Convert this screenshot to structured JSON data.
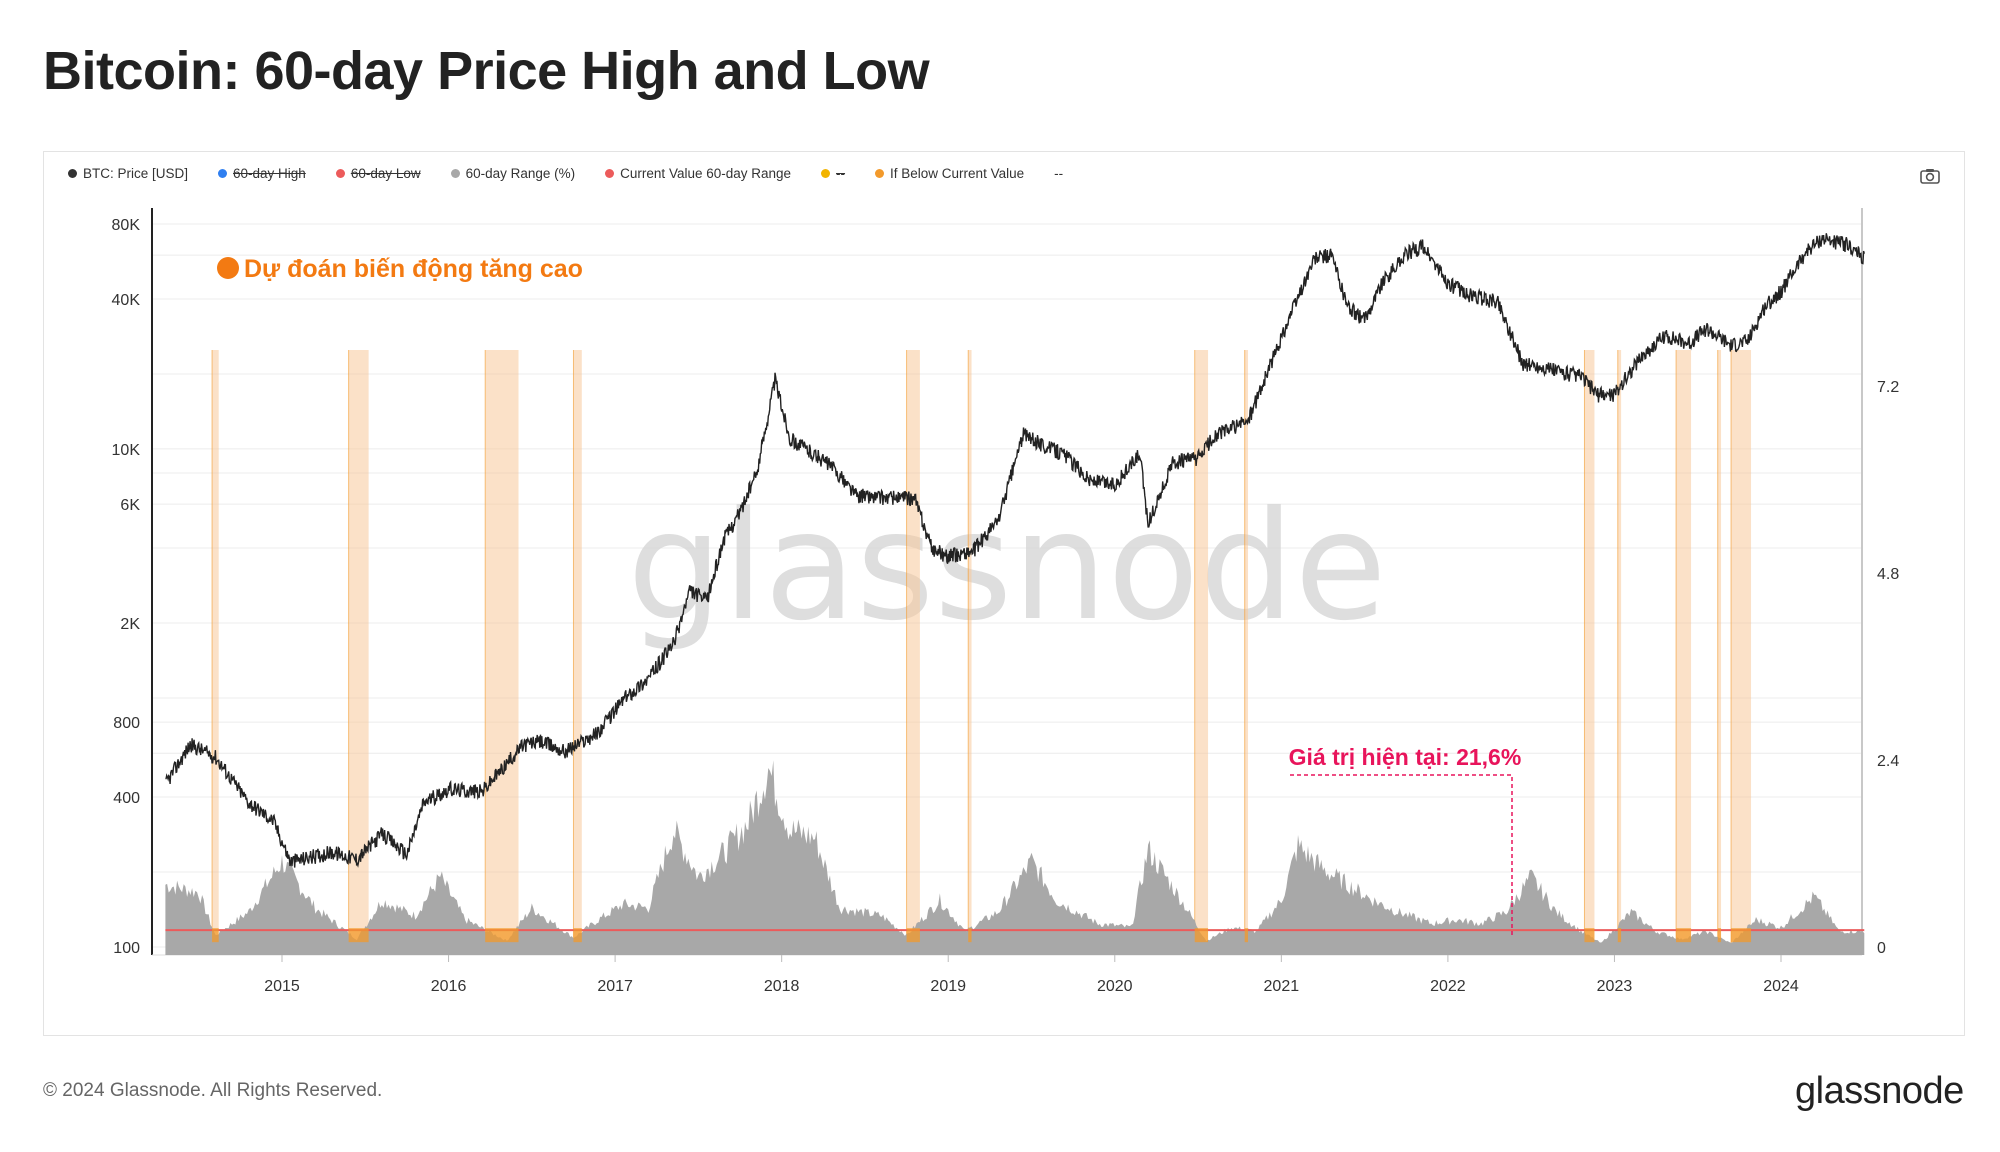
{
  "title": "Bitcoin: 60-day Price High and Low",
  "legend": [
    {
      "label": "BTC: Price [USD]",
      "color": "#333333",
      "strike": false
    },
    {
      "label": "60-day High",
      "color": "#2f7ff0",
      "strike": true
    },
    {
      "label": "60-day Low",
      "color": "#ec5b5b",
      "strike": true
    },
    {
      "label": "60-day Range (%)",
      "color": "#a8a8a8",
      "strike": false
    },
    {
      "label": "Current Value 60-day Range",
      "color": "#ec5b5b",
      "strike": false
    },
    {
      "label": "--",
      "color": "#f2b400",
      "strike": true
    },
    {
      "label": "If Below Current Value",
      "color": "#f39a2b",
      "strike": false
    },
    {
      "label": "--",
      "color": "",
      "strike": false
    }
  ],
  "annotations": {
    "top_note": "Dự đoán biến động tăng cao",
    "current_value": "Giá trị hiện tại: 21,6%"
  },
  "icons": {
    "camera": "camera-icon"
  },
  "watermark": "glassnode",
  "footer": "© 2024 Glassnode. All Rights Reserved.",
  "brand": "glassnode",
  "chart_data": {
    "type": "line",
    "title": "Bitcoin: 60-day Price High and Low",
    "x_ticks": [
      "2015",
      "2016",
      "2017",
      "2018",
      "2019",
      "2020",
      "2021",
      "2022",
      "2023",
      "2024"
    ],
    "y_left": {
      "scale": "log",
      "ticks": [
        "80K",
        "40K",
        "10K",
        "6K",
        "2K",
        "800",
        "400",
        "100"
      ],
      "range": [
        100,
        80000
      ]
    },
    "y_right": {
      "ticks": [
        "7.2",
        "4.8",
        "2.4",
        "0"
      ],
      "range": [
        0,
        9.0
      ]
    },
    "series": [
      {
        "name": "BTC: Price [USD]",
        "color": "#333333",
        "points": [
          [
            2014.3,
            450
          ],
          [
            2014.45,
            650
          ],
          [
            2014.6,
            580
          ],
          [
            2014.8,
            380
          ],
          [
            2014.95,
            320
          ],
          [
            2015.05,
            220
          ],
          [
            2015.3,
            240
          ],
          [
            2015.45,
            225
          ],
          [
            2015.6,
            285
          ],
          [
            2015.75,
            235
          ],
          [
            2015.85,
            380
          ],
          [
            2016.0,
            430
          ],
          [
            2016.2,
            420
          ],
          [
            2016.45,
            650
          ],
          [
            2016.55,
            670
          ],
          [
            2016.7,
            610
          ],
          [
            2016.9,
            730
          ],
          [
            2017.05,
            990
          ],
          [
            2017.2,
            1200
          ],
          [
            2017.35,
            1650
          ],
          [
            2017.45,
            2700
          ],
          [
            2017.55,
            2450
          ],
          [
            2017.65,
            4300
          ],
          [
            2017.75,
            5600
          ],
          [
            2017.85,
            8000
          ],
          [
            2017.96,
            19000
          ],
          [
            2018.05,
            11000
          ],
          [
            2018.15,
            10000
          ],
          [
            2018.3,
            8500
          ],
          [
            2018.45,
            6500
          ],
          [
            2018.6,
            6400
          ],
          [
            2018.8,
            6300
          ],
          [
            2018.9,
            4000
          ],
          [
            2019.0,
            3700
          ],
          [
            2019.15,
            3900
          ],
          [
            2019.3,
            5200
          ],
          [
            2019.45,
            11500
          ],
          [
            2019.55,
            10500
          ],
          [
            2019.7,
            9500
          ],
          [
            2019.85,
            7500
          ],
          [
            2020.0,
            7200
          ],
          [
            2020.15,
            9500
          ],
          [
            2020.2,
            5000
          ],
          [
            2020.35,
            8800
          ],
          [
            2020.5,
            9200
          ],
          [
            2020.6,
            11300
          ],
          [
            2020.8,
            13000
          ],
          [
            2020.95,
            23000
          ],
          [
            2021.05,
            34000
          ],
          [
            2021.2,
            58000
          ],
          [
            2021.3,
            60000
          ],
          [
            2021.4,
            37000
          ],
          [
            2021.5,
            33000
          ],
          [
            2021.6,
            46000
          ],
          [
            2021.75,
            61000
          ],
          [
            2021.85,
            65000
          ],
          [
            2022.0,
            46000
          ],
          [
            2022.15,
            41000
          ],
          [
            2022.3,
            39000
          ],
          [
            2022.45,
            22000
          ],
          [
            2022.6,
            21000
          ],
          [
            2022.8,
            19500
          ],
          [
            2022.9,
            16500
          ],
          [
            2023.0,
            16600
          ],
          [
            2023.15,
            23000
          ],
          [
            2023.3,
            28500
          ],
          [
            2023.45,
            26500
          ],
          [
            2023.55,
            30500
          ],
          [
            2023.7,
            26000
          ],
          [
            2023.8,
            27000
          ],
          [
            2023.9,
            37000
          ],
          [
            2024.0,
            43000
          ],
          [
            2024.15,
            62000
          ],
          [
            2024.25,
            70000
          ],
          [
            2024.4,
            66000
          ],
          [
            2024.5,
            58000
          ]
        ]
      },
      {
        "name": "60-day Range (%)",
        "color": "#a8a8a8",
        "points": [
          [
            2014.3,
            0.8
          ],
          [
            2014.5,
            0.7
          ],
          [
            2014.6,
            0.15
          ],
          [
            2014.8,
            0.45
          ],
          [
            2015.0,
            1.1
          ],
          [
            2015.2,
            0.5
          ],
          [
            2015.45,
            0.1
          ],
          [
            2015.6,
            0.6
          ],
          [
            2015.8,
            0.4
          ],
          [
            2015.95,
            0.9
          ],
          [
            2016.1,
            0.35
          ],
          [
            2016.35,
            0.08
          ],
          [
            2016.5,
            0.5
          ],
          [
            2016.75,
            0.12
          ],
          [
            2016.9,
            0.35
          ],
          [
            2017.05,
            0.55
          ],
          [
            2017.2,
            0.5
          ],
          [
            2017.35,
            1.5
          ],
          [
            2017.5,
            0.9
          ],
          [
            2017.65,
            1.2
          ],
          [
            2017.8,
            1.6
          ],
          [
            2017.92,
            2.3
          ],
          [
            2018.05,
            1.5
          ],
          [
            2018.2,
            1.4
          ],
          [
            2018.35,
            0.5
          ],
          [
            2018.6,
            0.4
          ],
          [
            2018.75,
            0.15
          ],
          [
            2018.95,
            0.6
          ],
          [
            2019.1,
            0.2
          ],
          [
            2019.3,
            0.45
          ],
          [
            2019.5,
            1.1
          ],
          [
            2019.65,
            0.6
          ],
          [
            2019.9,
            0.3
          ],
          [
            2020.1,
            0.25
          ],
          [
            2020.2,
            1.25
          ],
          [
            2020.4,
            0.6
          ],
          [
            2020.55,
            0.08
          ],
          [
            2020.7,
            0.25
          ],
          [
            2020.85,
            0.2
          ],
          [
            2021.0,
            0.6
          ],
          [
            2021.1,
            1.3
          ],
          [
            2021.25,
            1.0
          ],
          [
            2021.4,
            0.8
          ],
          [
            2021.55,
            0.6
          ],
          [
            2021.7,
            0.45
          ],
          [
            2021.9,
            0.3
          ],
          [
            2022.05,
            0.35
          ],
          [
            2022.2,
            0.3
          ],
          [
            2022.35,
            0.45
          ],
          [
            2022.5,
            0.9
          ],
          [
            2022.65,
            0.45
          ],
          [
            2022.8,
            0.2
          ],
          [
            2022.92,
            0.05
          ],
          [
            2023.1,
            0.45
          ],
          [
            2023.25,
            0.2
          ],
          [
            2023.4,
            0.1
          ],
          [
            2023.55,
            0.2
          ],
          [
            2023.7,
            0.05
          ],
          [
            2023.85,
            0.35
          ],
          [
            2024.0,
            0.25
          ],
          [
            2024.2,
            0.65
          ],
          [
            2024.35,
            0.2
          ],
          [
            2024.5,
            0.2
          ]
        ]
      }
    ],
    "current_value_line": 0.216,
    "current_value_label": "Giá trị hiện tại: 21,6%",
    "highlight_periods": [
      [
        2014.58,
        2014.62
      ],
      [
        2015.4,
        2015.52
      ],
      [
        2016.22,
        2016.42
      ],
      [
        2016.75,
        2016.8
      ],
      [
        2018.75,
        2018.83
      ],
      [
        2019.12,
        2019.14
      ],
      [
        2020.48,
        2020.56
      ],
      [
        2020.78,
        2020.8
      ],
      [
        2022.82,
        2022.88
      ],
      [
        2023.02,
        2023.04
      ],
      [
        2023.37,
        2023.46
      ],
      [
        2023.62,
        2023.64
      ],
      [
        2023.7,
        2023.82
      ]
    ],
    "grid": true,
    "legend_placement": "top-left"
  }
}
